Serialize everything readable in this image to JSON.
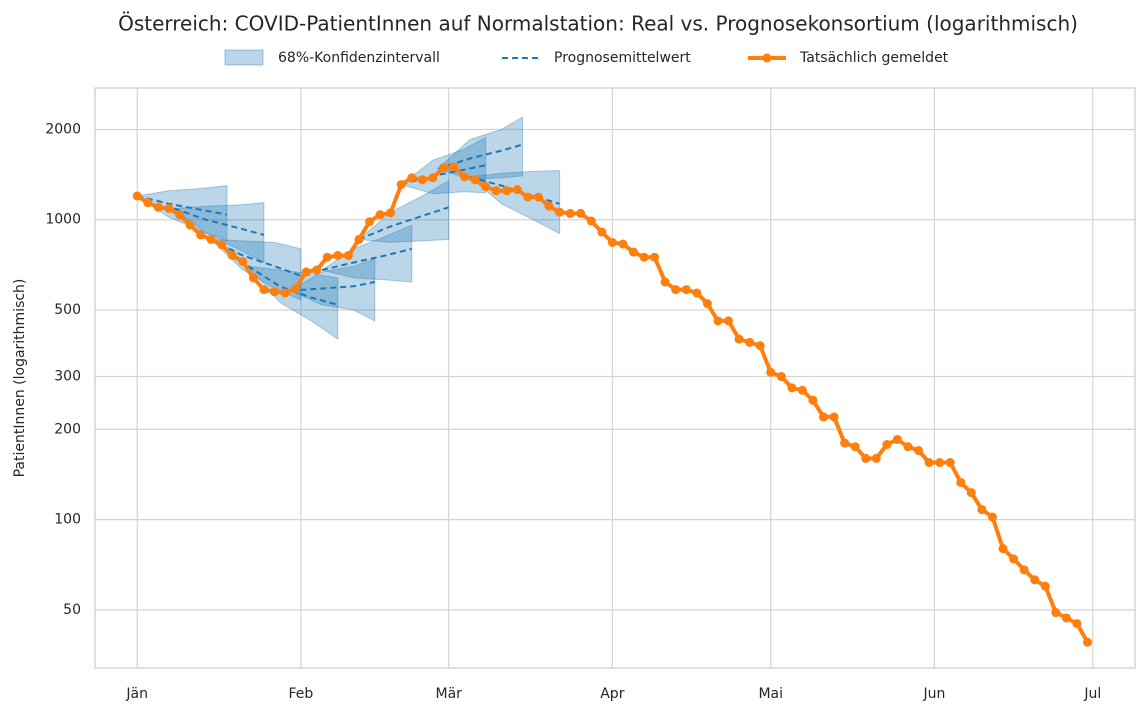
{
  "chart_data": {
    "type": "line",
    "title": "Österreich: COVID-PatientInnen auf Normalstation: Real vs. Prognosekonsortium (logarithmisch)",
    "ylabel": "PatientInnen (logarithmisch)",
    "yscale": "log",
    "grid": true,
    "legend": "top",
    "xlim": [
      -8,
      189
    ],
    "xticks": [
      {
        "value": 0,
        "label": "Jän"
      },
      {
        "value": 31,
        "label": "Feb"
      },
      {
        "value": 59,
        "label": "Mär"
      },
      {
        "value": 90,
        "label": "Apr"
      },
      {
        "value": 120,
        "label": "Mai"
      },
      {
        "value": 151,
        "label": "Jun"
      },
      {
        "value": 181,
        "label": "Jul"
      }
    ],
    "ylim": [
      32,
      2750
    ],
    "yticks": [
      50,
      100,
      200,
      300,
      500,
      1000,
      2000
    ],
    "forecast_band": {
      "name": "68%-Konfidenzintervall",
      "color": "#1f77b4"
    },
    "forecast_mean": {
      "name": "Prognosemittelwert",
      "color": "#1f77b4"
    },
    "forecasts": [
      {
        "x": [
          0,
          6,
          12,
          17
        ],
        "mean": [
          1200,
          1130,
          1080,
          1040
        ],
        "lower": [
          1200,
          1020,
          920,
          850
        ],
        "upper": [
          1200,
          1250,
          1270,
          1300
        ]
      },
      {
        "x": [
          7,
          13,
          19,
          24
        ],
        "mean": [
          1090,
          1000,
          940,
          890
        ],
        "lower": [
          1090,
          900,
          800,
          720
        ],
        "upper": [
          1090,
          1110,
          1120,
          1140
        ]
      },
      {
        "x": [
          14,
          20,
          26,
          31
        ],
        "mean": [
          860,
          760,
          700,
          650
        ],
        "lower": [
          860,
          680,
          590,
          540
        ],
        "upper": [
          860,
          850,
          840,
          800
        ]
      },
      {
        "x": [
          21,
          27,
          33,
          38
        ],
        "mean": [
          700,
          600,
          550,
          520
        ],
        "lower": [
          700,
          530,
          460,
          400
        ],
        "upper": [
          700,
          680,
          660,
          640
        ]
      },
      {
        "x": [
          29,
          35,
          41,
          45
        ],
        "mean": [
          580,
          590,
          600,
          620
        ],
        "lower": [
          580,
          520,
          500,
          460
        ],
        "upper": [
          580,
          670,
          700,
          740
        ]
      },
      {
        "x": [
          35,
          41,
          47,
          52
        ],
        "mean": [
          680,
          720,
          760,
          800
        ],
        "lower": [
          680,
          640,
          630,
          620
        ],
        "upper": [
          680,
          800,
          880,
          960
        ]
      },
      {
        "x": [
          42,
          48,
          54,
          59
        ],
        "mean": [
          860,
          950,
          1030,
          1100
        ],
        "lower": [
          860,
          840,
          850,
          860
        ],
        "upper": [
          860,
          1060,
          1200,
          1350
        ]
      },
      {
        "x": [
          50,
          56,
          62,
          66
        ],
        "mean": [
          1310,
          1400,
          1470,
          1520
        ],
        "lower": [
          1310,
          1220,
          1240,
          1230
        ],
        "upper": [
          1310,
          1580,
          1720,
          1880
        ]
      },
      {
        "x": [
          57,
          63,
          69,
          73
        ],
        "mean": [
          1480,
          1600,
          1700,
          1780
        ],
        "lower": [
          1480,
          1360,
          1380,
          1400
        ],
        "upper": [
          1480,
          1850,
          2000,
          2200
        ]
      },
      {
        "x": [
          63,
          69,
          75,
          80
        ],
        "mean": [
          1390,
          1300,
          1200,
          1130
        ],
        "lower": [
          1390,
          1130,
          1000,
          900
        ],
        "upper": [
          1390,
          1430,
          1450,
          1460
        ]
      }
    ],
    "series": [
      {
        "name": "Tatsächlich gemeldet",
        "color": "#ff7f0e",
        "x": [
          0,
          2,
          4,
          6,
          8,
          10,
          12,
          14,
          16,
          18,
          20,
          22,
          24,
          26,
          28,
          30,
          32,
          34,
          36,
          38,
          40,
          42,
          44,
          46,
          48,
          50,
          52,
          54,
          56,
          58,
          60,
          62,
          64,
          66,
          68,
          70,
          72,
          74,
          76,
          78,
          80,
          82,
          84,
          86,
          88,
          90,
          92,
          94,
          96,
          98,
          100,
          102,
          104,
          106,
          108,
          110,
          112,
          114,
          116,
          118,
          120,
          122,
          124,
          126,
          128,
          130,
          132,
          134,
          136,
          138,
          140,
          142,
          144,
          146,
          148,
          150,
          152,
          154,
          156,
          158,
          160,
          162,
          164,
          166,
          168,
          170,
          172,
          174,
          176,
          178,
          180
        ],
        "values": [
          1200,
          1140,
          1100,
          1090,
          1040,
          960,
          890,
          860,
          825,
          760,
          725,
          640,
          585,
          575,
          570,
          590,
          670,
          680,
          750,
          760,
          760,
          860,
          985,
          1040,
          1055,
          1310,
          1380,
          1360,
          1380,
          1490,
          1500,
          1390,
          1360,
          1290,
          1250,
          1250,
          1260,
          1190,
          1190,
          1110,
          1060,
          1050,
          1050,
          990,
          910,
          840,
          830,
          780,
          750,
          750,
          620,
          585,
          585,
          570,
          525,
          460,
          460,
          400,
          390,
          380,
          310,
          300,
          275,
          270,
          250,
          220,
          220,
          180,
          175,
          160,
          160,
          178,
          185,
          175,
          170,
          155,
          155,
          155,
          133,
          123,
          108,
          102,
          80,
          74,
          68,
          63,
          60,
          49,
          47,
          45,
          39
        ]
      }
    ]
  }
}
